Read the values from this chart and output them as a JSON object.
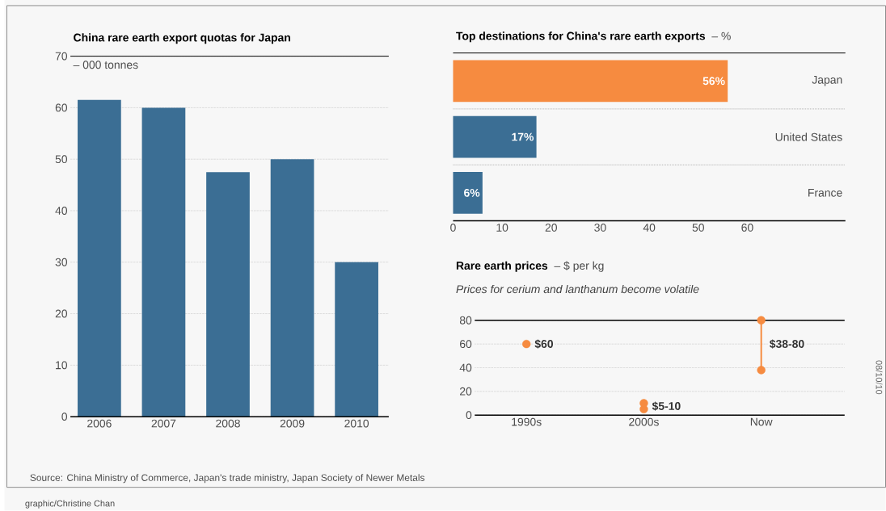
{
  "chart_data": [
    {
      "type": "bar",
      "title": "China rare earth export quotas for Japan",
      "ylabel": "– 000 tonnes",
      "categories": [
        "2006",
        "2007",
        "2008",
        "2009",
        "2010"
      ],
      "values": [
        61.5,
        60,
        47.5,
        50,
        30
      ],
      "color": "#3b6e94",
      "ylim": [
        0,
        70
      ],
      "yticks": [
        0,
        10,
        20,
        30,
        40,
        50,
        60,
        70
      ],
      "grid": "y",
      "annotations": [
        "Source: China Ministry of Commerce, Japan's trade ministry, Japan Society of Newer Metals",
        "graphic/Christine Chan"
      ]
    },
    {
      "type": "bar",
      "orientation": "horizontal",
      "title": "Top destinations for China's rare earth exports",
      "xlabel": "– %",
      "categories": [
        "Japan",
        "United States",
        "France"
      ],
      "values": [
        56,
        17,
        6
      ],
      "colors": [
        "#f68b40",
        "#3b6e94",
        "#3b6e94"
      ],
      "value_labels": [
        "56%",
        "17%",
        "6%"
      ],
      "xlim": [
        0,
        80
      ],
      "xticks": [
        0,
        10,
        20,
        30,
        40,
        50,
        60
      ],
      "grid": "y"
    },
    {
      "type": "scatter",
      "title": "Rare earth prices",
      "ylabel": "– $ per kg",
      "subtitle": "Prices for cerium and lanthanum become volatile",
      "categories": [
        "1990s",
        "2000s",
        "Now"
      ],
      "ylim": [
        0,
        80
      ],
      "yticks": [
        0,
        20,
        40,
        60,
        80
      ],
      "grid": "y",
      "series": [
        {
          "marker": "circle",
          "color": "#f68b40",
          "values": [
            60,
            5,
            38
          ]
        },
        {
          "marker": "circle",
          "color": "#f68b40",
          "values": [
            null,
            10,
            80
          ]
        },
        {
          "type": "line",
          "marker": "none",
          "color": "#f68b40",
          "x": [
            "Now",
            "Now"
          ],
          "values": [
            38,
            80
          ]
        }
      ],
      "annotations": [
        {
          "text": "$60",
          "x": "1990s",
          "y": 60
        },
        {
          "text": "$5-10",
          "x": "2000s",
          "y": 7.5
        },
        {
          "text": "$38-80",
          "x": "Now",
          "y": 60
        },
        "08/10/10"
      ]
    }
  ]
}
